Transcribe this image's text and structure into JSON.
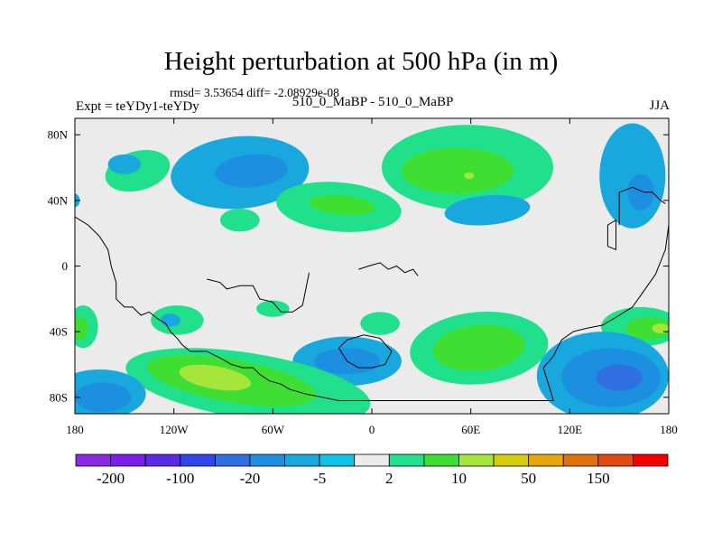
{
  "chart_data": {
    "type": "heatmap",
    "title": "Height perturbation at 500 hPa (in m)",
    "subtitle": "rmsd= 3.53654 diff= -2.08929e-08",
    "left_label": "Expt = teYDy1-teYDy",
    "center_label": "510_0_MaBP - 510_0_MaBP",
    "right_label": "JJA",
    "xlim": [
      -180,
      180
    ],
    "ylim": [
      -90,
      90
    ],
    "x_ticks": [
      {
        "value": -180,
        "label": "180"
      },
      {
        "value": -120,
        "label": "120W"
      },
      {
        "value": -60,
        "label": "60W"
      },
      {
        "value": 0,
        "label": "0"
      },
      {
        "value": 60,
        "label": "60E"
      },
      {
        "value": 120,
        "label": "120E"
      },
      {
        "value": 180,
        "label": "180"
      }
    ],
    "y_ticks": [
      {
        "value": 80,
        "label": "80N"
      },
      {
        "value": 40,
        "label": "40N"
      },
      {
        "value": 0,
        "label": "0"
      },
      {
        "value": -40,
        "label": "40S"
      },
      {
        "value": -80,
        "label": "80S"
      }
    ],
    "colorbar": {
      "colors": [
        "#8a2be2",
        "#7a1ee8",
        "#5a2be6",
        "#2f47ea",
        "#2f6fe2",
        "#1c8fe0",
        "#18a8de",
        "#10c3e6",
        "#ebebeb",
        "#20e08c",
        "#3ede32",
        "#a6e63a",
        "#d6cc10",
        "#e8a510",
        "#e07010",
        "#e04a10",
        "#f00000"
      ],
      "labels": [
        {
          "boundary": 1,
          "label": "-200"
        },
        {
          "boundary": 3,
          "label": "-100"
        },
        {
          "boundary": 5,
          "label": "-20"
        },
        {
          "boundary": 7,
          "label": "-5"
        },
        {
          "boundary": 9,
          "label": "2"
        },
        {
          "boundary": 11,
          "label": "10"
        },
        {
          "boundary": 13,
          "label": "50"
        },
        {
          "boundary": 15,
          "label": "150"
        }
      ]
    },
    "background_color": "#ebebeb",
    "contour_regions": [
      {
        "color": "#20e08c",
        "lon": -142,
        "lat": 58,
        "rlon": 20,
        "rlat": 12,
        "rot": -15
      },
      {
        "color": "#18a8de",
        "lon": -150,
        "lat": 62,
        "rlon": 10,
        "rlat": 6,
        "rot": 0
      },
      {
        "color": "#18a8de",
        "lon": -80,
        "lat": 57,
        "rlon": 42,
        "rlat": 22,
        "rot": -5
      },
      {
        "color": "#1c8fe0",
        "lon": -73,
        "lat": 58,
        "rlon": 22,
        "rlat": 10,
        "rot": -5
      },
      {
        "color": "#20e08c",
        "lon": -20,
        "lat": 36,
        "rlon": 38,
        "rlat": 15,
        "rot": 5
      },
      {
        "color": "#3ede32",
        "lon": -18,
        "lat": 37,
        "rlon": 20,
        "rlat": 6,
        "rot": 5
      },
      {
        "color": "#20e08c",
        "lon": -80,
        "lat": 28,
        "rlon": 12,
        "rlat": 7,
        "rot": 0
      },
      {
        "color": "#20e08c",
        "lon": 58,
        "lat": 60,
        "rlon": 52,
        "rlat": 26,
        "rot": 0
      },
      {
        "color": "#3ede32",
        "lon": 52,
        "lat": 58,
        "rlon": 34,
        "rlat": 14,
        "rot": 0
      },
      {
        "color": "#a6e63a",
        "lon": 59,
        "lat": 55,
        "rlon": 3,
        "rlat": 2,
        "rot": 0
      },
      {
        "color": "#18a8de",
        "lon": 70,
        "lat": 34,
        "rlon": 26,
        "rlat": 9,
        "rot": -5
      },
      {
        "color": "#18a8de",
        "lon": 158,
        "lat": 55,
        "rlon": 20,
        "rlat": 32,
        "rot": 0
      },
      {
        "color": "#1c8fe0",
        "lon": 163,
        "lat": 45,
        "rlon": 8,
        "rlat": 11,
        "rot": 0
      },
      {
        "color": "#18a8de",
        "lon": -180,
        "lat": 40,
        "rlon": 3,
        "rlat": 4,
        "rot": 0
      },
      {
        "color": "#20e08c",
        "lon": -118,
        "lat": -33,
        "rlon": 16,
        "rlat": 9,
        "rot": 0
      },
      {
        "color": "#18a8de",
        "lon": -122,
        "lat": -33,
        "rlon": 6,
        "rlat": 4,
        "rot": 0
      },
      {
        "color": "#20e08c",
        "lon": -60,
        "lat": -26,
        "rlon": 10,
        "rlat": 5,
        "rot": 0
      },
      {
        "color": "#20e08c",
        "lon": 5,
        "lat": -35,
        "rlon": 12,
        "rlat": 7,
        "rot": 0
      },
      {
        "color": "#18a8de",
        "lon": -15,
        "lat": -58,
        "rlon": 33,
        "rlat": 15,
        "rot": 0
      },
      {
        "color": "#1c8fe0",
        "lon": -15,
        "lat": -58,
        "rlon": 20,
        "rlat": 8,
        "rot": 0
      },
      {
        "color": "#20e08c",
        "lon": 65,
        "lat": -50,
        "rlon": 42,
        "rlat": 22,
        "rot": -5
      },
      {
        "color": "#3ede32",
        "lon": 65,
        "lat": -50,
        "rlon": 28,
        "rlat": 14,
        "rot": -5
      },
      {
        "color": "#20e08c",
        "lon": -75,
        "lat": -73,
        "rlon": 75,
        "rlat": 20,
        "rot": 9
      },
      {
        "color": "#3ede32",
        "lon": -85,
        "lat": -70,
        "rlon": 52,
        "rlat": 13,
        "rot": 10
      },
      {
        "color": "#a6e63a",
        "lon": -95,
        "lat": -68,
        "rlon": 22,
        "rlat": 7,
        "rot": 10
      },
      {
        "color": "#18a8de",
        "lon": -165,
        "lat": -78,
        "rlon": 28,
        "rlat": 15,
        "rot": 0
      },
      {
        "color": "#1c8fe0",
        "lon": -163,
        "lat": -80,
        "rlon": 17,
        "rlat": 9,
        "rot": 0
      },
      {
        "color": "#20e08c",
        "lon": -175,
        "lat": -37,
        "rlon": 9,
        "rlat": 13,
        "rot": 0
      },
      {
        "color": "#3ede32",
        "lon": -177,
        "lat": -38,
        "rlon": 5,
        "rlat": 7,
        "rot": 0
      },
      {
        "color": "#20e08c",
        "lon": 163,
        "lat": -37,
        "rlon": 24,
        "rlat": 12,
        "rot": 0
      },
      {
        "color": "#3ede32",
        "lon": 168,
        "lat": -38,
        "rlon": 14,
        "rlat": 7,
        "rot": 0
      },
      {
        "color": "#a6e63a",
        "lon": 175,
        "lat": -38,
        "rlon": 5,
        "rlat": 3,
        "rot": 0
      },
      {
        "color": "#18a8de",
        "lon": 140,
        "lat": -67,
        "rlon": 40,
        "rlat": 27,
        "rot": 0
      },
      {
        "color": "#1c8fe0",
        "lon": 145,
        "lat": -68,
        "rlon": 30,
        "rlat": 18,
        "rot": 0
      },
      {
        "color": "#2f6fe2",
        "lon": 150,
        "lat": -68,
        "rlon": 14,
        "rlat": 8,
        "rot": 0
      }
    ],
    "coastlines": [
      [
        [
          -180,
          30
        ],
        [
          -172,
          25
        ],
        [
          -165,
          18
        ],
        [
          -160,
          10
        ],
        [
          -158,
          0
        ],
        [
          -155,
          -10
        ],
        [
          -155,
          -20
        ],
        [
          -150,
          -25
        ],
        [
          -145,
          -25
        ],
        [
          -140,
          -30
        ],
        [
          -135,
          -28
        ],
        [
          -130,
          -32
        ],
        [
          -125,
          -35
        ],
        [
          -122,
          -40
        ],
        [
          -118,
          -44
        ],
        [
          -115,
          -48
        ],
        [
          -110,
          -52
        ],
        [
          -100,
          -52
        ],
        [
          -92,
          -56
        ],
        [
          -85,
          -60
        ],
        [
          -78,
          -62
        ],
        [
          -72,
          -62
        ],
        [
          -68,
          -66
        ],
        [
          -62,
          -70
        ],
        [
          -55,
          -72
        ],
        [
          -50,
          -75
        ],
        [
          -40,
          -78
        ],
        [
          -30,
          -80
        ],
        [
          -20,
          -82
        ],
        [
          0,
          -82
        ],
        [
          30,
          -82
        ],
        [
          60,
          -82
        ],
        [
          90,
          -82
        ],
        [
          110,
          -82
        ],
        [
          108,
          -75
        ],
        [
          104,
          -62
        ],
        [
          110,
          -55
        ],
        [
          115,
          -45
        ],
        [
          122,
          -40
        ],
        [
          130,
          -38
        ],
        [
          140,
          -36
        ],
        [
          150,
          -30
        ],
        [
          158,
          -25
        ],
        [
          165,
          -15
        ],
        [
          172,
          -5
        ],
        [
          178,
          10
        ],
        [
          180,
          25
        ]
      ],
      [
        [
          -100,
          -8
        ],
        [
          -92,
          -10
        ],
        [
          -88,
          -14
        ],
        [
          -80,
          -12
        ],
        [
          -72,
          -12
        ],
        [
          -68,
          -20
        ],
        [
          -60,
          -22
        ],
        [
          -55,
          -28
        ],
        [
          -48,
          -28
        ],
        [
          -42,
          -24
        ],
        [
          -40,
          -14
        ],
        [
          -38,
          -4
        ]
      ],
      [
        [
          -8,
          -2
        ],
        [
          -2,
          0
        ],
        [
          5,
          2
        ],
        [
          10,
          -2
        ],
        [
          15,
          0
        ],
        [
          20,
          -4
        ],
        [
          25,
          -2
        ],
        [
          28,
          -6
        ]
      ],
      [
        [
          -20,
          -50
        ],
        [
          -15,
          -45
        ],
        [
          -5,
          -42
        ],
        [
          5,
          -44
        ],
        [
          12,
          -52
        ],
        [
          8,
          -60
        ],
        [
          0,
          -62
        ],
        [
          -8,
          -62
        ],
        [
          -15,
          -58
        ],
        [
          -20,
          -50
        ]
      ],
      [
        [
          150,
          25
        ],
        [
          150,
          45
        ],
        [
          158,
          48
        ],
        [
          165,
          45
        ],
        [
          170,
          45
        ],
        [
          175,
          40
        ],
        [
          178,
          38
        ]
      ],
      [
        [
          143,
          12
        ],
        [
          143,
          25
        ],
        [
          148,
          28
        ],
        [
          148,
          10
        ],
        [
          143,
          12
        ]
      ]
    ]
  }
}
